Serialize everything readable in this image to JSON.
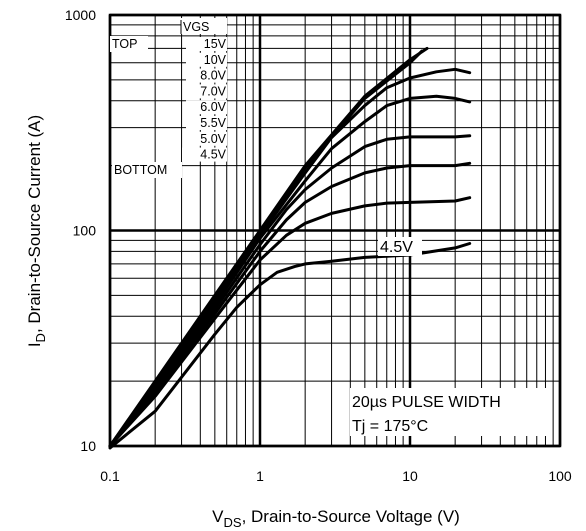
{
  "chart_data": {
    "type": "line",
    "title": "",
    "xlabel_main": "V",
    "xlabel_sub": "DS",
    "xlabel_rest": ", Drain-to-Source Voltage (V)",
    "ylabel_main": "I",
    "ylabel_sub": "D",
    "ylabel_rest": ", Drain-to-Source Current (A)",
    "xscale": "log",
    "yscale": "log",
    "xlim": [
      0.1,
      100
    ],
    "ylim": [
      10,
      1000
    ],
    "xticks": [
      0.1,
      1,
      10,
      100
    ],
    "xtick_labels": [
      "0.1",
      "1",
      "10",
      "100"
    ],
    "yticks": [
      10,
      100,
      1000
    ],
    "ytick_labels": [
      "10",
      "100",
      "1000"
    ],
    "grid": true,
    "legend": {
      "header": "VGS",
      "top_label": "TOP",
      "bottom_label": "BOTTOM",
      "entries": [
        "15V",
        "10V",
        "8.0V",
        "7.0V",
        "6.0V",
        "5.5V",
        "5.0V",
        "4.5V"
      ]
    },
    "annotations": {
      "curve_label": "4.5V",
      "pulse_width": "20µs PULSE WIDTH",
      "temperature": "Tj = 175°C"
    },
    "series": [
      {
        "vgs": "15V",
        "points": [
          [
            0.1,
            10
          ],
          [
            0.2,
            20
          ],
          [
            0.5,
            50
          ],
          [
            1,
            100
          ],
          [
            2,
            200
          ],
          [
            5,
            420
          ],
          [
            10,
            620
          ],
          [
            13,
            700
          ]
        ]
      },
      {
        "vgs": "10V",
        "points": [
          [
            0.1,
            10
          ],
          [
            0.2,
            19.5
          ],
          [
            0.5,
            49
          ],
          [
            1,
            98
          ],
          [
            2,
            195
          ],
          [
            5,
            410
          ],
          [
            10,
            600
          ],
          [
            12,
            680
          ]
        ]
      },
      {
        "vgs": "8.0V",
        "points": [
          [
            0.1,
            10
          ],
          [
            0.2,
            19
          ],
          [
            0.5,
            47
          ],
          [
            1,
            95
          ],
          [
            2,
            185
          ],
          [
            3,
            270
          ],
          [
            5,
            380
          ],
          [
            7,
            460
          ],
          [
            10,
            510
          ],
          [
            15,
            545
          ],
          [
            20,
            560
          ],
          [
            25,
            540
          ]
        ]
      },
      {
        "vgs": "7.0V",
        "points": [
          [
            0.1,
            10
          ],
          [
            0.2,
            18.5
          ],
          [
            0.5,
            45
          ],
          [
            1,
            92
          ],
          [
            2,
            170
          ],
          [
            3,
            240
          ],
          [
            5,
            320
          ],
          [
            7,
            380
          ],
          [
            10,
            410
          ],
          [
            15,
            420
          ],
          [
            20,
            410
          ],
          [
            25,
            395
          ]
        ]
      },
      {
        "vgs": "6.0V",
        "points": [
          [
            0.1,
            10
          ],
          [
            0.2,
            18
          ],
          [
            0.5,
            43
          ],
          [
            1,
            86
          ],
          [
            1.5,
            125
          ],
          [
            2,
            155
          ],
          [
            3,
            195
          ],
          [
            5,
            245
          ],
          [
            7,
            265
          ],
          [
            10,
            272
          ],
          [
            20,
            272
          ],
          [
            25,
            275
          ]
        ]
      },
      {
        "vgs": "5.5V",
        "points": [
          [
            0.1,
            10
          ],
          [
            0.2,
            17.5
          ],
          [
            0.5,
            41
          ],
          [
            1,
            80
          ],
          [
            1.5,
            112
          ],
          [
            2,
            135
          ],
          [
            3,
            160
          ],
          [
            5,
            185
          ],
          [
            7,
            195
          ],
          [
            10,
            200
          ],
          [
            20,
            200
          ],
          [
            25,
            205
          ]
        ]
      },
      {
        "vgs": "5.0V",
        "points": [
          [
            0.1,
            10
          ],
          [
            0.2,
            17
          ],
          [
            0.5,
            39
          ],
          [
            1,
            73
          ],
          [
            1.5,
            95
          ],
          [
            2,
            108
          ],
          [
            3,
            120
          ],
          [
            5,
            130
          ],
          [
            7,
            134
          ],
          [
            10,
            135
          ],
          [
            20,
            137
          ],
          [
            25,
            142
          ]
        ]
      },
      {
        "vgs": "4.5V",
        "points": [
          [
            0.1,
            8.5
          ],
          [
            0.2,
            14.5
          ],
          [
            0.5,
            33
          ],
          [
            0.7,
            44
          ],
          [
            1,
            56
          ],
          [
            1.3,
            64
          ],
          [
            1.7,
            68
          ],
          [
            2,
            70
          ],
          [
            3,
            72
          ],
          [
            5,
            75
          ],
          [
            7,
            76
          ],
          [
            10,
            77
          ],
          [
            20,
            83
          ],
          [
            25,
            87
          ]
        ]
      }
    ]
  }
}
